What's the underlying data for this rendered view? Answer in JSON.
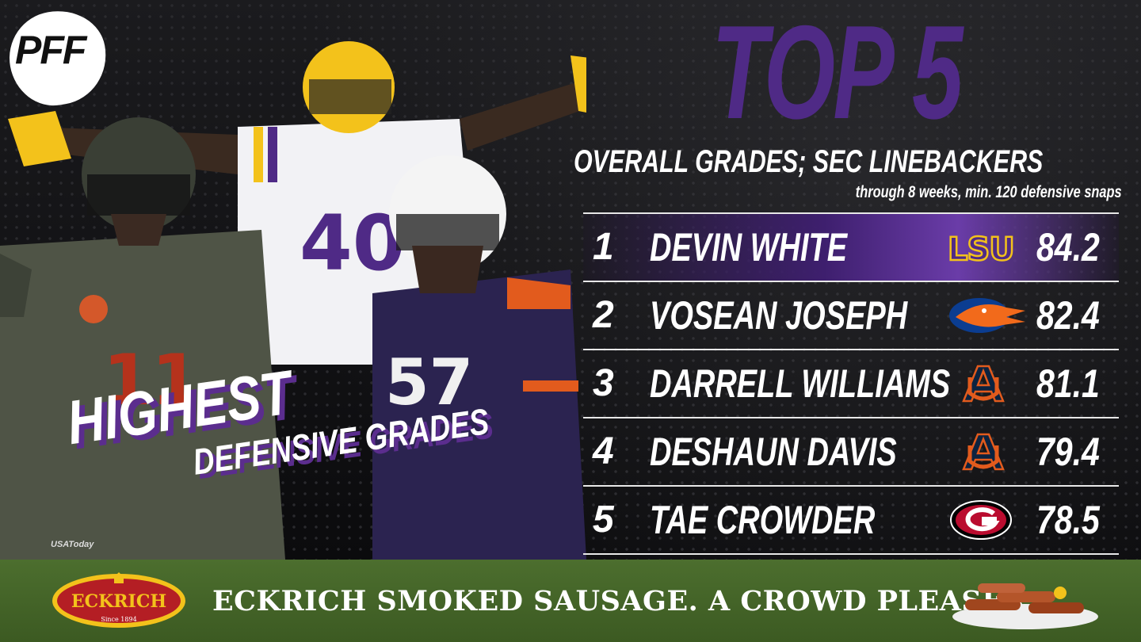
{
  "branding": {
    "logo_text": "PFF"
  },
  "headline": {
    "big": "TOP 5",
    "subtitle": "OVERALL GRADES; SEC LINEBACKERS",
    "criteria": "through 8 weeks, min. 120 defensive snaps"
  },
  "side_title": {
    "line1": "HIGHEST",
    "line2": "DEFENSIVE GRADES"
  },
  "photo_credit": "USAToday",
  "players_jerseys": {
    "florida": "11",
    "lsu": "40",
    "auburn": "57"
  },
  "rankings": [
    {
      "rank": "1",
      "name": "DEVIN WHITE",
      "team": "LSU",
      "team_logo": "lsu-logo",
      "grade": "84.2"
    },
    {
      "rank": "2",
      "name": "VOSEAN JOSEPH",
      "team": "Florida",
      "team_logo": "florida-gator-logo",
      "grade": "82.4"
    },
    {
      "rank": "3",
      "name": "DARRELL WILLIAMS",
      "team": "Auburn",
      "team_logo": "auburn-logo",
      "grade": "81.1"
    },
    {
      "rank": "4",
      "name": "DESHAUN DAVIS",
      "team": "Auburn",
      "team_logo": "auburn-logo",
      "grade": "79.4"
    },
    {
      "rank": "5",
      "name": "TAE CROWDER",
      "team": "Georgia",
      "team_logo": "georgia-g-logo",
      "grade": "78.5"
    }
  ],
  "ad": {
    "brand_text": "ECKRICH",
    "brand_since": "Since 1894",
    "tagline": "ECKRICH SMOKED SAUSAGE. A CROWD PLEASER."
  },
  "colors": {
    "purple": "#4f2a86",
    "highlight": "#6a3ca8",
    "ad_green": "#4c6e2e",
    "eckrich_red": "#b41e24",
    "eckrich_gold": "#f3c21b"
  }
}
